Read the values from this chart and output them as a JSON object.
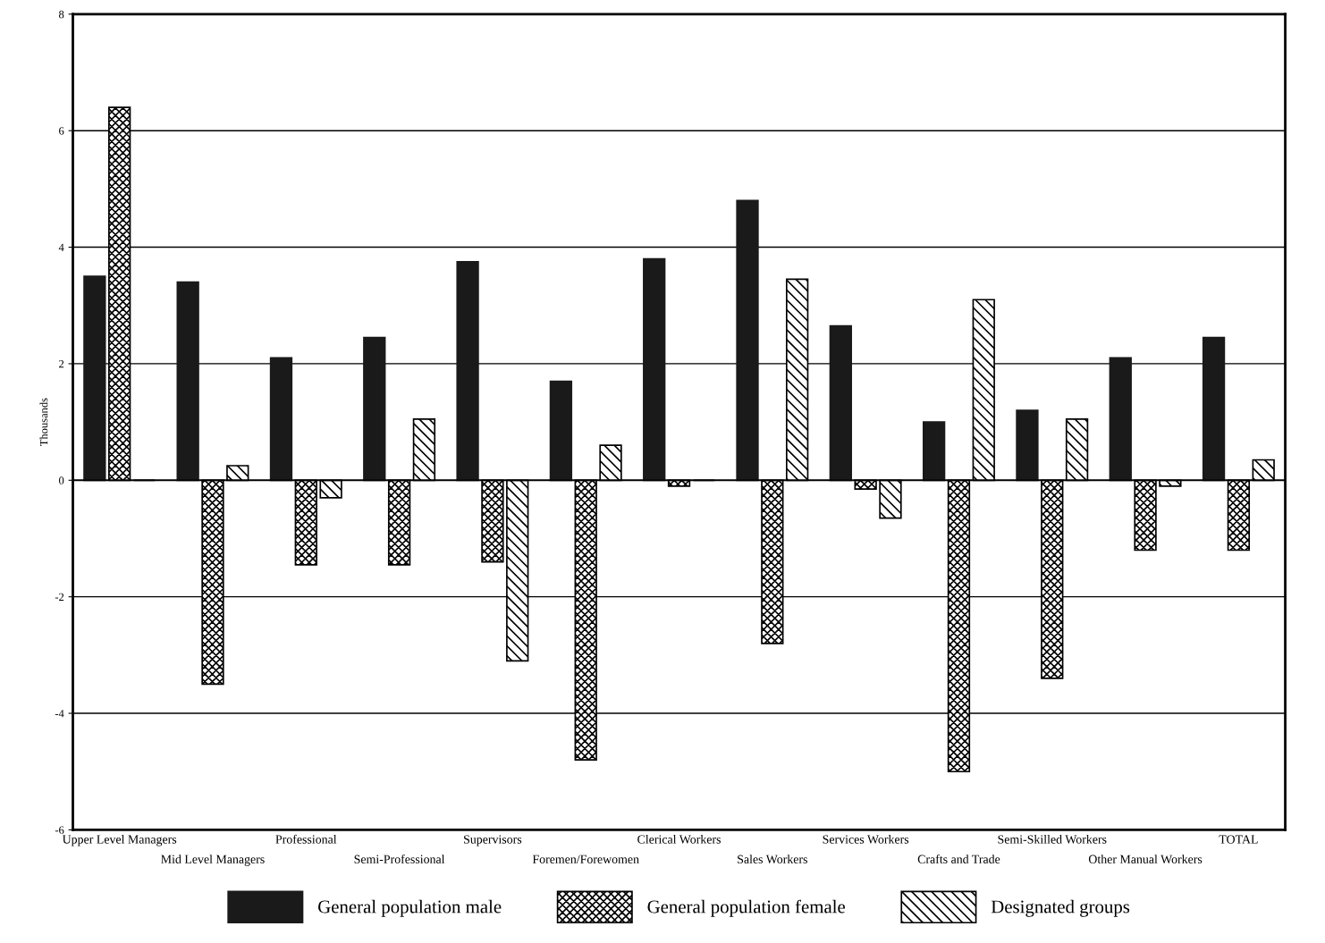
{
  "chart_data": {
    "type": "bar",
    "ylabel": "Thousands",
    "categories": [
      "Upper Level Managers",
      "Mid Level Managers",
      "Professional",
      "Semi-Professional",
      "Supervisors",
      "Foremen/Forewomen",
      "Clerical Workers",
      "Sales Workers",
      "Services Workers",
      "Crafts and Trade",
      "Semi-Skilled Workers",
      "Other Manual Workers",
      "TOTAL"
    ],
    "series": [
      {
        "name": "General population male",
        "color": "#1a1a1a",
        "values": [
          3.5,
          3.4,
          2.1,
          2.45,
          3.75,
          1.7,
          3.8,
          4.8,
          2.65,
          1.0,
          1.2,
          2.1,
          2.45
        ]
      },
      {
        "name": "General population female",
        "color": "#000000",
        "values": [
          6.4,
          -3.5,
          -1.45,
          -1.45,
          -1.4,
          -4.8,
          -0.1,
          -2.8,
          -0.15,
          -5.0,
          -3.4,
          -1.2,
          -1.2
        ]
      },
      {
        "name": "Designated groups",
        "color": "#000000",
        "values": [
          0,
          0.25,
          -0.3,
          1.05,
          -3.1,
          0.6,
          0,
          3.45,
          -0.65,
          3.1,
          1.05,
          -0.1,
          0.35
        ]
      }
    ],
    "ylim": [
      -6,
      8
    ],
    "yticks": [
      -6,
      -4,
      -2,
      0,
      2,
      4,
      6,
      8
    ],
    "grid": "y",
    "legend": "bottom"
  }
}
